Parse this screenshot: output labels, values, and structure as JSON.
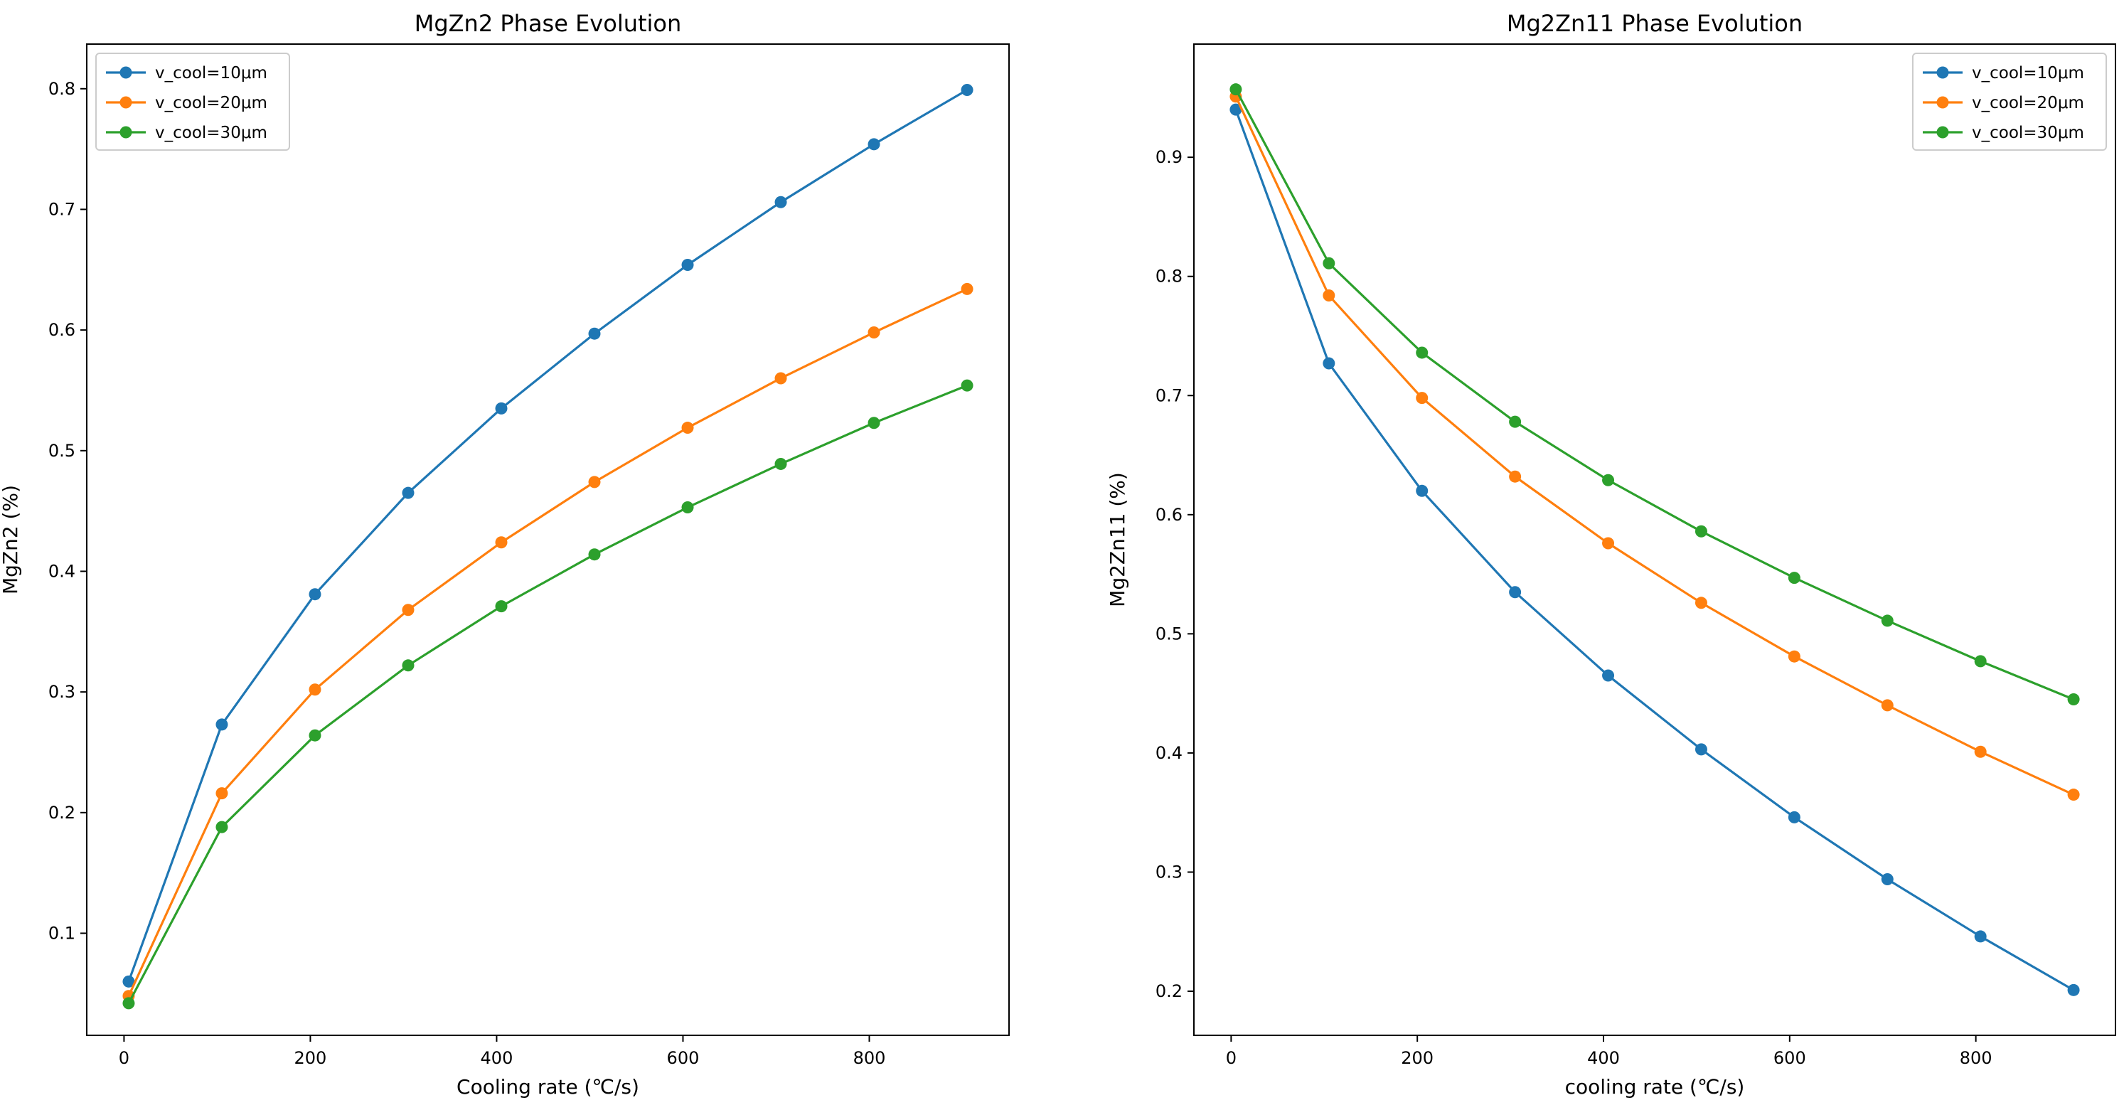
{
  "chart_data": [
    {
      "type": "line",
      "title": "MgZn2 Phase Evolution",
      "xlabel": "Cooling rate (℃/s)",
      "ylabel": "MgZn2 (%)",
      "x": [
        5,
        105,
        205,
        305,
        405,
        505,
        605,
        705,
        805,
        905
      ],
      "xlim": [
        -40,
        950
      ],
      "ylim": [
        0.0154,
        0.837
      ],
      "xticks": [
        0,
        200,
        400,
        600,
        800
      ],
      "yticks": [
        0.1,
        0.2,
        0.3,
        0.4,
        0.5,
        0.6,
        0.7,
        0.8
      ],
      "legend_position": "upper left",
      "grid": false,
      "series": [
        {
          "name": "v_cool=10μm",
          "color": "#1f77b4",
          "values": [
            0.06,
            0.273,
            0.381,
            0.465,
            0.535,
            0.597,
            0.654,
            0.706,
            0.754,
            0.799
          ]
        },
        {
          "name": "v_cool=20μm",
          "color": "#ff7f0e",
          "values": [
            0.048,
            0.216,
            0.302,
            0.368,
            0.424,
            0.474,
            0.519,
            0.56,
            0.598,
            0.634
          ]
        },
        {
          "name": "v_cool=30μm",
          "color": "#2ca02c",
          "values": [
            0.042,
            0.188,
            0.264,
            0.322,
            0.371,
            0.414,
            0.453,
            0.489,
            0.523,
            0.554
          ]
        }
      ]
    },
    {
      "type": "line",
      "title": "Mg2Zn11 Phase Evolution",
      "xlabel": "cooling rate (℃/s)",
      "ylabel": "Mg2Zn11 (%)",
      "x": [
        5,
        105,
        205,
        305,
        405,
        505,
        605,
        705,
        805,
        905
      ],
      "xlim": [
        -40,
        950
      ],
      "ylim": [
        0.163,
        0.995
      ],
      "xticks": [
        0,
        200,
        400,
        600,
        800
      ],
      "yticks": [
        0.2,
        0.3,
        0.4,
        0.5,
        0.6,
        0.7,
        0.8,
        0.9
      ],
      "legend_position": "upper right",
      "grid": false,
      "series": [
        {
          "name": "v_cool=10μm",
          "color": "#1f77b4",
          "values": [
            0.94,
            0.727,
            0.62,
            0.535,
            0.465,
            0.403,
            0.346,
            0.294,
            0.246,
            0.201
          ]
        },
        {
          "name": "v_cool=20μm",
          "color": "#ff7f0e",
          "values": [
            0.951,
            0.784,
            0.698,
            0.632,
            0.576,
            0.526,
            0.481,
            0.44,
            0.401,
            0.365
          ]
        },
        {
          "name": "v_cool=30μm",
          "color": "#2ca02c",
          "values": [
            0.957,
            0.811,
            0.736,
            0.678,
            0.629,
            0.586,
            0.547,
            0.511,
            0.477,
            0.445
          ]
        }
      ]
    }
  ]
}
